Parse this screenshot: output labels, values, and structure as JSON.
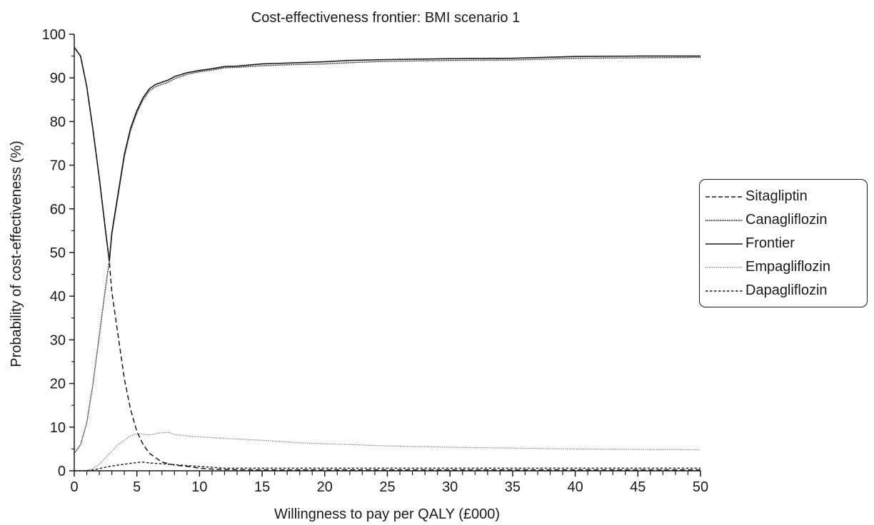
{
  "chart_data": {
    "type": "line",
    "title": "Cost-effectiveness frontier: BMI scenario 1",
    "xlabel": "Willingness to pay per QALY (£000)",
    "ylabel": "Probability of cost-effectiveness (%)",
    "xlim": [
      0,
      50
    ],
    "ylim": [
      0,
      100
    ],
    "x_ticks": [
      "0",
      "5",
      "10",
      "15",
      "20",
      "25",
      "30",
      "35",
      "40",
      "45",
      "50"
    ],
    "y_ticks": [
      "0",
      "10",
      "20",
      "30",
      "40",
      "50",
      "60",
      "70",
      "80",
      "90",
      "100"
    ],
    "grid": false,
    "legend_position": "right",
    "series": [
      {
        "name": "Sitagliptin",
        "style": "dashed",
        "x": [
          0,
          0.5,
          1,
          1.5,
          2,
          2.5,
          2.8,
          3,
          3.5,
          4,
          4.5,
          5,
          5.5,
          6,
          6.5,
          7,
          8,
          9,
          10,
          11,
          12,
          15,
          20,
          30,
          40,
          50
        ],
        "y": [
          97,
          95,
          88,
          78,
          67,
          55,
          48,
          41,
          31,
          21,
          14,
          9,
          6,
          4,
          3,
          2,
          1.3,
          1,
          0.6,
          0.4,
          0.3,
          0.2,
          0.2,
          0.2,
          0.2,
          0.2
        ]
      },
      {
        "name": "Canagliflozin",
        "style": "dense-dotted",
        "x": [
          0,
          0.5,
          1,
          1.5,
          2,
          2.5,
          2.8,
          3,
          3.5,
          4,
          4.5,
          5,
          5.5,
          6,
          6.5,
          7,
          7.5,
          8,
          9,
          10,
          11,
          12,
          13,
          15,
          17,
          20,
          22,
          25,
          30,
          35,
          40,
          45,
          50
        ],
        "y": [
          4,
          6,
          11,
          20,
          31,
          42,
          48,
          54,
          63,
          72,
          78,
          82,
          85,
          87,
          88,
          88.5,
          89,
          89.8,
          90.8,
          91.4,
          91.8,
          92.3,
          92.4,
          92.8,
          93,
          93.2,
          93.5,
          93.8,
          94,
          94.1,
          94.5,
          94.6,
          94.7
        ]
      },
      {
        "name": "Frontier",
        "style": "solid",
        "x": [
          0,
          0.5,
          1,
          1.5,
          2,
          2.5,
          2.8,
          3,
          3.5,
          4,
          4.5,
          5,
          5.5,
          6,
          6.5,
          7,
          7.5,
          8,
          9,
          10,
          11,
          12,
          13,
          15,
          17,
          20,
          22,
          25,
          30,
          35,
          40,
          45,
          50
        ],
        "y": [
          97,
          95,
          88,
          78,
          67,
          55,
          48,
          54.5,
          63.5,
          72.5,
          78.5,
          82.5,
          85.5,
          87.5,
          88.5,
          89,
          89.5,
          90.3,
          91.2,
          91.7,
          92.1,
          92.6,
          92.7,
          93.2,
          93.4,
          93.7,
          94,
          94.2,
          94.4,
          94.5,
          94.9,
          95,
          95
        ]
      },
      {
        "name": "Empagliflozin",
        "style": "dotted",
        "x": [
          0,
          1,
          1.5,
          2,
          2.5,
          3,
          3.5,
          4,
          4.5,
          5,
          5.5,
          6,
          6.5,
          7,
          7.5,
          8,
          9,
          10,
          11,
          12,
          15,
          18,
          20,
          25,
          30,
          35,
          40,
          45,
          50
        ],
        "y": [
          0,
          0.1,
          0.5,
          1.5,
          3,
          4.5,
          6,
          7,
          8,
          8.5,
          8.4,
          8.2,
          8.5,
          8.7,
          8.8,
          8.3,
          8,
          7.8,
          7.6,
          7.4,
          7,
          6.4,
          6.2,
          5.7,
          5.4,
          5.2,
          5,
          4.9,
          4.8
        ]
      },
      {
        "name": "Dapagliflozin",
        "style": "short-dashed",
        "x": [
          0,
          1,
          1.5,
          2,
          2.5,
          3,
          3.5,
          4,
          4.5,
          5,
          5.5,
          6,
          7,
          8,
          9,
          10,
          11,
          12,
          15,
          20,
          30,
          40,
          50
        ],
        "y": [
          0,
          0,
          0.2,
          0.5,
          0.8,
          1.1,
          1.3,
          1.5,
          1.7,
          1.9,
          2,
          1.8,
          1.6,
          1.4,
          1.2,
          1,
          0.8,
          0.6,
          0.6,
          0.6,
          0.6,
          0.6,
          0.6
        ]
      }
    ]
  }
}
